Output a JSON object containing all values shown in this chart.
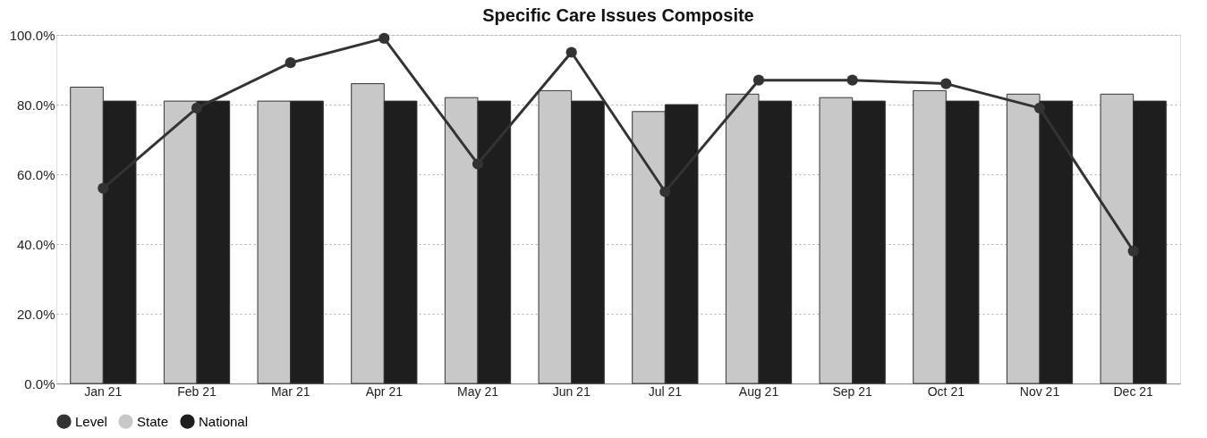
{
  "chart_data": {
    "type": "bar",
    "title": "Specific Care Issues Composite",
    "categories": [
      "Jan 21",
      "Feb 21",
      "Mar 21",
      "Apr 21",
      "May 21",
      "Jun 21",
      "Jul 21",
      "Aug 21",
      "Sep 21",
      "Oct 21",
      "Nov 21",
      "Dec 21"
    ],
    "series": [
      {
        "name": "Level",
        "type": "line",
        "color": "#333333",
        "values": [
          56,
          79,
          92,
          99,
          63,
          95,
          55,
          87,
          87,
          86,
          79,
          38
        ]
      },
      {
        "name": "State",
        "color": "#c8c8c8",
        "values": [
          85,
          81,
          81,
          86,
          82,
          84,
          78,
          83,
          82,
          84,
          83,
          83
        ]
      },
      {
        "name": "National",
        "color": "#1e1e1e",
        "values": [
          81,
          81,
          81,
          81,
          81,
          81,
          80,
          81,
          81,
          81,
          81,
          81
        ]
      }
    ],
    "ylim": [
      0,
      100
    ],
    "yticks": [
      {
        "value": 0,
        "label": "0.0%"
      },
      {
        "value": 20,
        "label": "20.0%"
      },
      {
        "value": 40,
        "label": "40.0%"
      },
      {
        "value": 60,
        "label": "60.0%"
      },
      {
        "value": 80,
        "label": "80.0%"
      },
      {
        "value": 100,
        "label": "100.0%"
      }
    ],
    "grid": "y",
    "legend": "bottom",
    "marker": "circle",
    "line_style": "solid"
  }
}
